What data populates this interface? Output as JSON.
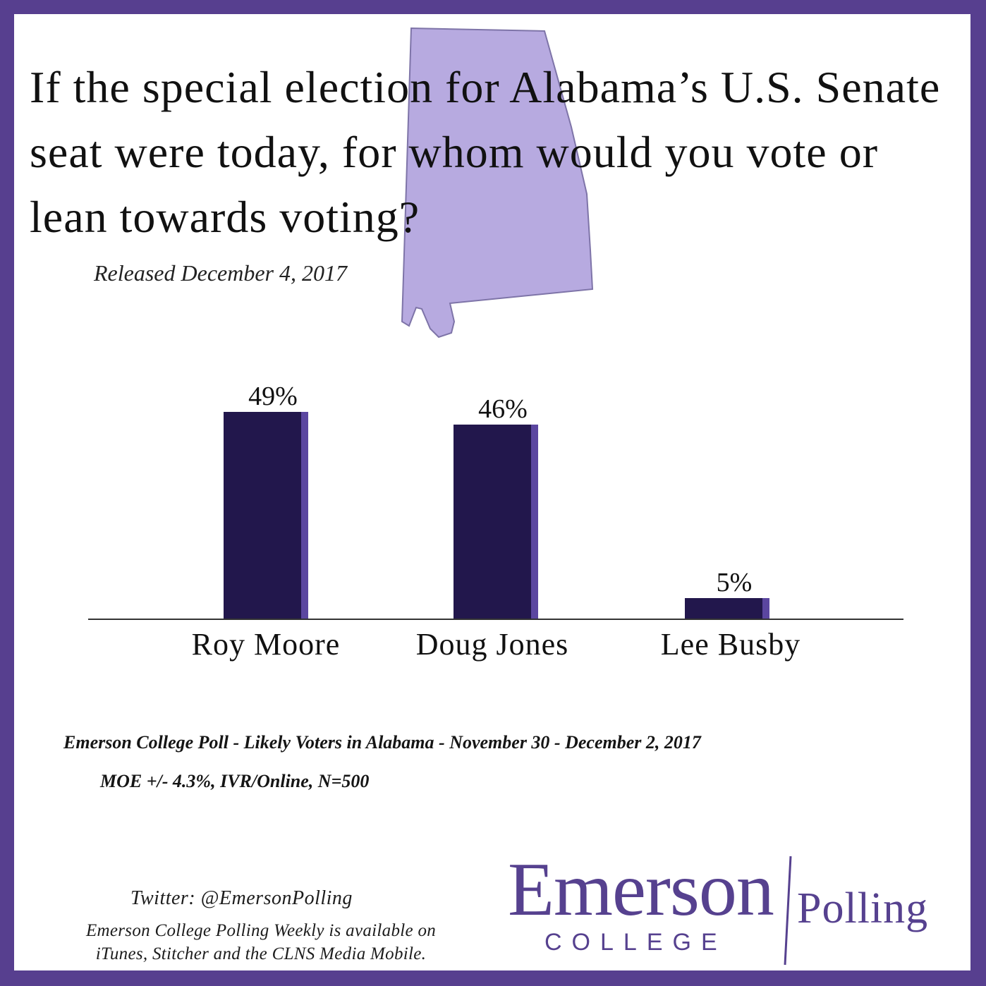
{
  "title": "If the special election for Alabama’s U.S. Senate seat were today, for whom would you vote or lean towards voting?",
  "released": "Released December 4, 2017",
  "colors": {
    "frame": "#573f8f",
    "bar_front": "#22174c",
    "bar_side": "#5b46a0",
    "state_fill": "#b7aae0",
    "logo": "#56418f"
  },
  "state_icon": "alabama-map-icon",
  "chart_data": {
    "type": "bar",
    "title": "If the special election for Alabama’s U.S. Senate seat were today, for whom would you vote or lean towards voting?",
    "categories": [
      "Roy Moore",
      "Doug Jones",
      "Lee Busby"
    ],
    "values": [
      49,
      46,
      5
    ],
    "data_labels": [
      "49%",
      "46%",
      "5%"
    ],
    "unit": "%",
    "ylim": [
      0,
      50
    ],
    "grid": false,
    "xlabel": "",
    "ylabel": ""
  },
  "footnotes": {
    "poll_line": "Emerson College Poll - Likely Voters in Alabama - November 30 - December 2, 2017",
    "moe_line": "MOE +/- 4.3%, IVR/Online, N=500"
  },
  "social": {
    "twitter": "Twitter: @EmersonPolling",
    "podcast_line1": "Emerson College Polling Weekly is available on",
    "podcast_line2": "iTunes, Stitcher and the CLNS Media Mobile."
  },
  "logo": {
    "name": "Emerson",
    "sub": "COLLEGE",
    "right": "Polling"
  }
}
